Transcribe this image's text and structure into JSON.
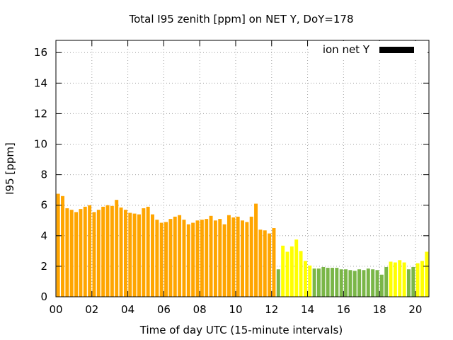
{
  "chart_data": {
    "type": "bar",
    "title": "Total I95 zenith [ppm] on NET Y, DoY=178",
    "xlabel": "Time of day UTC (15-minute intervals)",
    "ylabel": "I95 [ppm]",
    "ylim": [
      0,
      16.8
    ],
    "xlim": [
      0,
      20.75
    ],
    "yticks": [
      "0",
      "2",
      "4",
      "6",
      "8",
      "10",
      "12",
      "14",
      "16"
    ],
    "xticks": [
      "00",
      "02",
      "04",
      "06",
      "08",
      "10",
      "12",
      "14",
      "16",
      "18",
      "20"
    ],
    "grid": true,
    "legend": {
      "label": "ion net Y",
      "position": "top-right",
      "color": "#000000"
    },
    "colors": {
      "orange": "#ffa500",
      "yellow": "#ffff00",
      "green": "#7ab648"
    },
    "interval_hours": 0.25,
    "values": [
      6.75,
      6.6,
      5.8,
      5.7,
      5.55,
      5.75,
      5.9,
      6.0,
      5.55,
      5.7,
      5.9,
      6.0,
      5.95,
      6.35,
      5.85,
      5.7,
      5.5,
      5.45,
      5.4,
      5.8,
      5.9,
      5.4,
      5.05,
      4.85,
      4.9,
      5.1,
      5.25,
      5.35,
      5.05,
      4.75,
      4.85,
      5.0,
      5.05,
      5.1,
      5.3,
      5.0,
      5.1,
      4.75,
      5.35,
      5.2,
      5.25,
      5.0,
      4.9,
      5.25,
      6.1,
      4.4,
      4.35,
      4.15,
      4.5,
      1.8,
      3.35,
      2.95,
      3.3,
      3.75,
      3.0,
      2.35,
      2.05,
      1.85,
      1.85,
      1.95,
      1.9,
      1.9,
      1.9,
      1.8,
      1.8,
      1.75,
      1.7,
      1.8,
      1.75,
      1.85,
      1.8,
      1.75,
      1.45,
      1.95,
      2.3,
      2.25,
      2.4,
      2.25,
      1.8,
      1.95,
      2.2,
      2.35,
      2.95
    ],
    "bar_colors": [
      "orange",
      "orange",
      "orange",
      "orange",
      "orange",
      "orange",
      "orange",
      "orange",
      "orange",
      "orange",
      "orange",
      "orange",
      "orange",
      "orange",
      "orange",
      "orange",
      "orange",
      "orange",
      "orange",
      "orange",
      "orange",
      "orange",
      "orange",
      "orange",
      "orange",
      "orange",
      "orange",
      "orange",
      "orange",
      "orange",
      "orange",
      "orange",
      "orange",
      "orange",
      "orange",
      "orange",
      "orange",
      "orange",
      "orange",
      "orange",
      "orange",
      "orange",
      "orange",
      "orange",
      "orange",
      "orange",
      "orange",
      "orange",
      "orange",
      "green",
      "yellow",
      "yellow",
      "yellow",
      "yellow",
      "yellow",
      "yellow",
      "yellow",
      "green",
      "green",
      "green",
      "green",
      "green",
      "green",
      "green",
      "green",
      "green",
      "green",
      "green",
      "green",
      "green",
      "green",
      "green",
      "green",
      "green",
      "yellow",
      "yellow",
      "yellow",
      "yellow",
      "green",
      "green",
      "yellow",
      "yellow",
      "yellow"
    ]
  }
}
